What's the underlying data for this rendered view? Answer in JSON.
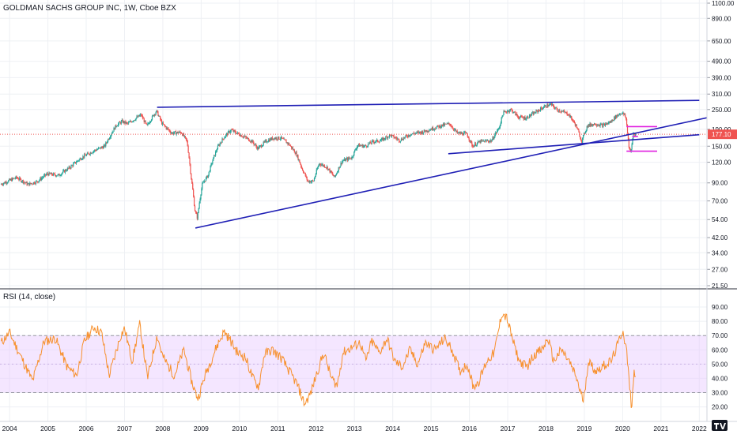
{
  "chart_data": [
    {
      "type": "candlestick",
      "title": "GOLDMAN SACHS GROUP INC, 1W, Cboe BZX",
      "y_scale": "log",
      "ylim": [
        21.5,
        1100
      ],
      "y_ticks": [
        "1100.00",
        "890.00",
        "650.00",
        "490.00",
        "390.00",
        "310.00",
        "250.00",
        "190.00",
        "150.00",
        "120.00",
        "90.00",
        "70.00",
        "54.00",
        "42.00",
        "34.00",
        "27.00",
        "21.50"
      ],
      "last_price_label": "177.10",
      "x_tick_labels": [
        "2004",
        "2005",
        "2006",
        "2007",
        "2008",
        "2009",
        "2010",
        "2011",
        "2012",
        "2013",
        "2014",
        "2015",
        "2016",
        "2017",
        "2018",
        "2019",
        "2020",
        "2021",
        "2022"
      ],
      "xlim": [
        2003.75,
        2022.2
      ],
      "price_path": [
        [
          2003.78,
          88
        ],
        [
          2004.2,
          97
        ],
        [
          2004.5,
          88
        ],
        [
          2004.75,
          92
        ],
        [
          2005.0,
          102
        ],
        [
          2005.3,
          100
        ],
        [
          2005.6,
          112
        ],
        [
          2005.9,
          128
        ],
        [
          2006.2,
          140
        ],
        [
          2006.5,
          150
        ],
        [
          2006.8,
          200
        ],
        [
          2006.95,
          212
        ],
        [
          2007.1,
          205
        ],
        [
          2007.3,
          220
        ],
        [
          2007.45,
          232
        ],
        [
          2007.6,
          198
        ],
        [
          2007.85,
          245
        ],
        [
          2008.0,
          205
        ],
        [
          2008.25,
          180
        ],
        [
          2008.5,
          182
        ],
        [
          2008.65,
          160
        ],
        [
          2008.75,
          100
        ],
        [
          2008.85,
          62
        ],
        [
          2008.92,
          55
        ],
        [
          2009.05,
          88
        ],
        [
          2009.2,
          100
        ],
        [
          2009.45,
          148
        ],
        [
          2009.6,
          168
        ],
        [
          2009.8,
          188
        ],
        [
          2009.95,
          180
        ],
        [
          2010.2,
          168
        ],
        [
          2010.35,
          160
        ],
        [
          2010.5,
          145
        ],
        [
          2010.7,
          160
        ],
        [
          2010.9,
          168
        ],
        [
          2011.1,
          168
        ],
        [
          2011.3,
          155
        ],
        [
          2011.5,
          135
        ],
        [
          2011.65,
          110
        ],
        [
          2011.8,
          92
        ],
        [
          2011.95,
          92
        ],
        [
          2012.1,
          118
        ],
        [
          2012.3,
          112
        ],
        [
          2012.5,
          97
        ],
        [
          2012.7,
          122
        ],
        [
          2012.95,
          128
        ],
        [
          2013.1,
          152
        ],
        [
          2013.3,
          150
        ],
        [
          2013.5,
          160
        ],
        [
          2013.7,
          162
        ],
        [
          2013.95,
          175
        ],
        [
          2014.2,
          163
        ],
        [
          2014.5,
          178
        ],
        [
          2014.8,
          183
        ],
        [
          2015.0,
          190
        ],
        [
          2015.3,
          200
        ],
        [
          2015.5,
          205
        ],
        [
          2015.7,
          180
        ],
        [
          2015.95,
          178
        ],
        [
          2016.1,
          150
        ],
        [
          2016.3,
          160
        ],
        [
          2016.6,
          162
        ],
        [
          2016.8,
          195
        ],
        [
          2016.9,
          238
        ],
        [
          2017.1,
          250
        ],
        [
          2017.3,
          225
        ],
        [
          2017.5,
          222
        ],
        [
          2017.8,
          245
        ],
        [
          2018.0,
          262
        ],
        [
          2018.15,
          268
        ],
        [
          2018.3,
          250
        ],
        [
          2018.6,
          235
        ],
        [
          2018.8,
          200
        ],
        [
          2018.95,
          160
        ],
        [
          2019.1,
          200
        ],
        [
          2019.3,
          205
        ],
        [
          2019.5,
          200
        ],
        [
          2019.7,
          210
        ],
        [
          2019.85,
          228
        ],
        [
          2020.0,
          240
        ],
        [
          2020.1,
          225
        ],
        [
          2020.18,
          150
        ],
        [
          2020.23,
          135
        ],
        [
          2020.3,
          180
        ],
        [
          2020.35,
          177
        ]
      ],
      "trendlines": [
        {
          "color": "#1f1fb5",
          "points": [
            [
              2007.85,
              258
            ],
            [
              2022.0,
              284
            ]
          ]
        },
        {
          "color": "#1f1fb5",
          "points": [
            [
              2008.85,
              48
            ],
            [
              2022.2,
              223
            ]
          ]
        },
        {
          "color": "#1f1fb5",
          "points": [
            [
              2015.45,
              135
            ],
            [
              2022.0,
              176
            ]
          ]
        }
      ],
      "highlight_lines": [
        {
          "color": "#e020e0",
          "x": [
            2020.1,
            2020.9
          ],
          "y": 197
        },
        {
          "color": "#e020e0",
          "x": [
            2020.1,
            2020.9
          ],
          "y": 140
        },
        {
          "color": "#e020e0",
          "x": [
            2020.25,
            2020.4
          ],
          "y": 172
        }
      ]
    },
    {
      "type": "line",
      "title": "RSI (14, close)",
      "ylim": [
        17,
        95
      ],
      "y_ticks": [
        "90.00",
        "80.00",
        "70.00",
        "60.00",
        "50.00",
        "40.00",
        "30.00",
        "20.00"
      ],
      "band": [
        30,
        70
      ],
      "line_color": "#f7902d",
      "band_color": "#e6c7ff",
      "rsi_path": [
        [
          2003.78,
          65
        ],
        [
          2004.0,
          72
        ],
        [
          2004.3,
          55
        ],
        [
          2004.6,
          38
        ],
        [
          2004.9,
          66
        ],
        [
          2005.2,
          68
        ],
        [
          2005.5,
          48
        ],
        [
          2005.75,
          42
        ],
        [
          2005.95,
          66
        ],
        [
          2006.2,
          76
        ],
        [
          2006.4,
          72
        ],
        [
          2006.6,
          42
        ],
        [
          2006.9,
          70
        ],
        [
          2007.0,
          75
        ],
        [
          2007.2,
          52
        ],
        [
          2007.4,
          78
        ],
        [
          2007.6,
          40
        ],
        [
          2007.85,
          70
        ],
        [
          2008.0,
          55
        ],
        [
          2008.3,
          42
        ],
        [
          2008.55,
          60
        ],
        [
          2008.75,
          38
        ],
        [
          2008.85,
          30
        ],
        [
          2008.92,
          26
        ],
        [
          2009.1,
          42
        ],
        [
          2009.4,
          62
        ],
        [
          2009.6,
          73
        ],
        [
          2009.75,
          67
        ],
        [
          2009.95,
          58
        ],
        [
          2010.15,
          55
        ],
        [
          2010.35,
          40
        ],
        [
          2010.5,
          34
        ],
        [
          2010.65,
          57
        ],
        [
          2010.85,
          60
        ],
        [
          2011.1,
          54
        ],
        [
          2011.3,
          45
        ],
        [
          2011.5,
          36
        ],
        [
          2011.7,
          22
        ],
        [
          2011.85,
          29
        ],
        [
          2012.0,
          42
        ],
        [
          2012.2,
          58
        ],
        [
          2012.4,
          40
        ],
        [
          2012.55,
          35
        ],
        [
          2012.7,
          58
        ],
        [
          2012.95,
          62
        ],
        [
          2013.15,
          65
        ],
        [
          2013.3,
          52
        ],
        [
          2013.45,
          66
        ],
        [
          2013.65,
          58
        ],
        [
          2013.85,
          68
        ],
        [
          2014.05,
          52
        ],
        [
          2014.25,
          48
        ],
        [
          2014.45,
          60
        ],
        [
          2014.65,
          50
        ],
        [
          2014.85,
          65
        ],
        [
          2015.1,
          60
        ],
        [
          2015.35,
          68
        ],
        [
          2015.55,
          60
        ],
        [
          2015.75,
          45
        ],
        [
          2015.95,
          50
        ],
        [
          2016.1,
          34
        ],
        [
          2016.25,
          38
        ],
        [
          2016.45,
          52
        ],
        [
          2016.65,
          58
        ],
        [
          2016.85,
          86
        ],
        [
          2016.98,
          82
        ],
        [
          2017.15,
          65
        ],
        [
          2017.3,
          52
        ],
        [
          2017.5,
          48
        ],
        [
          2017.7,
          57
        ],
        [
          2017.9,
          60
        ],
        [
          2018.05,
          68
        ],
        [
          2018.2,
          52
        ],
        [
          2018.4,
          60
        ],
        [
          2018.6,
          52
        ],
        [
          2018.8,
          40
        ],
        [
          2018.9,
          30
        ],
        [
          2018.98,
          24
        ],
        [
          2019.1,
          52
        ],
        [
          2019.3,
          45
        ],
        [
          2019.5,
          49
        ],
        [
          2019.7,
          52
        ],
        [
          2019.85,
          62
        ],
        [
          2020.0,
          74
        ],
        [
          2020.1,
          60
        ],
        [
          2020.18,
          35
        ],
        [
          2020.23,
          20
        ],
        [
          2020.3,
          44
        ],
        [
          2020.35,
          43
        ]
      ]
    }
  ],
  "watermark_icon": "tv-logo-icon"
}
